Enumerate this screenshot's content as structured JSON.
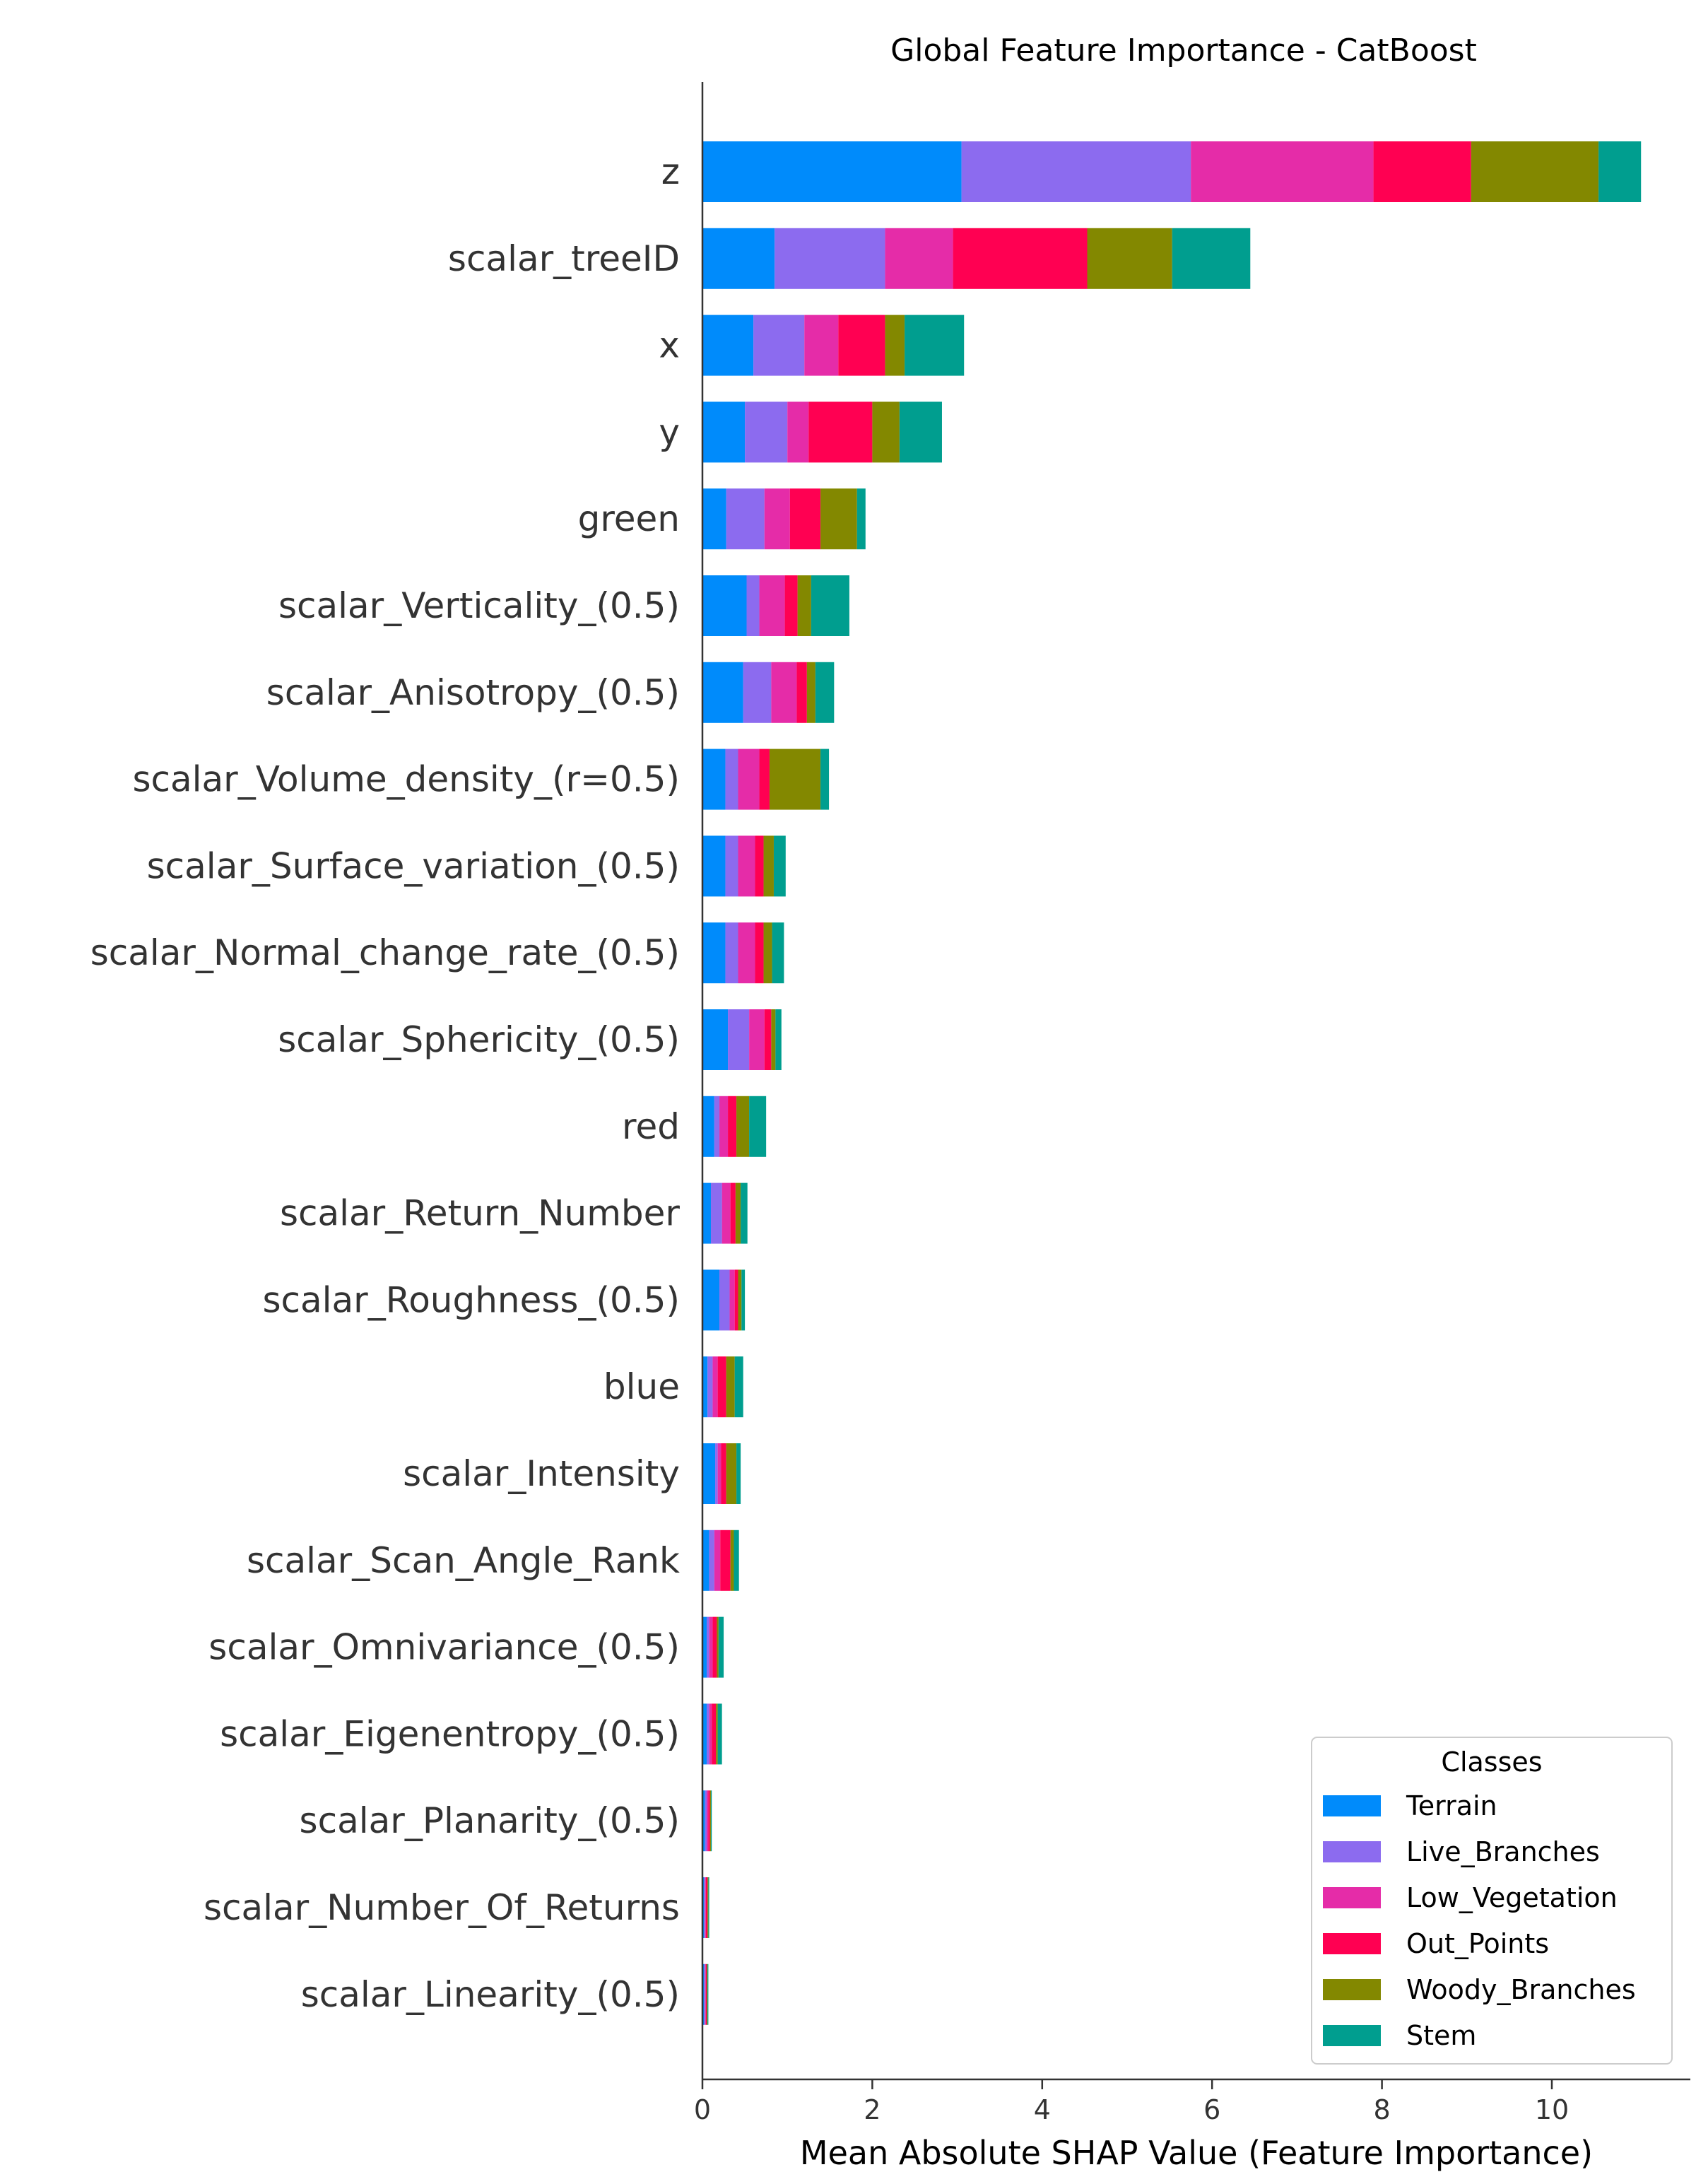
{
  "chart_data": {
    "type": "bar",
    "orientation": "horizontal",
    "stacked": true,
    "title": "Global Feature Importance - CatBoost",
    "xlabel": "Mean Absolute SHAP Value (Feature Importance)",
    "ylabel": "",
    "xlim": [
      0,
      11.6
    ],
    "xticks": [
      0,
      2,
      4,
      6,
      8,
      10
    ],
    "grid": false,
    "legend": {
      "title": "Classes",
      "position": "bottom-right"
    },
    "categories": [
      "z",
      "scalar_treeID",
      "x",
      "y",
      "green",
      "scalar_Verticality_(0.5)",
      "scalar_Anisotropy_(0.5)",
      "scalar_Volume_density_(r=0.5)",
      "scalar_Surface_variation_(0.5)",
      "scalar_Normal_change_rate_(0.5)",
      "scalar_Sphericity_(0.5)",
      "red",
      "scalar_Return_Number",
      "scalar_Roughness_(0.5)",
      "blue",
      "scalar_Intensity",
      "scalar_Scan_Angle_Rank",
      "scalar_Omnivariance_(0.5)",
      "scalar_Eigenentropy_(0.5)",
      "scalar_Planarity_(0.5)",
      "scalar_Number_Of_Returns",
      "scalar_Linearity_(0.5)"
    ],
    "series": [
      {
        "name": "Terrain",
        "color": "#008bfb",
        "values": [
          3.05,
          0.85,
          0.6,
          0.5,
          0.28,
          0.52,
          0.48,
          0.27,
          0.27,
          0.27,
          0.3,
          0.14,
          0.1,
          0.2,
          0.06,
          0.15,
          0.08,
          0.05,
          0.05,
          0.03,
          0.02,
          0.02
        ]
      },
      {
        "name": "Live_Branches",
        "color": "#8c6bef",
        "values": [
          2.7,
          1.3,
          0.6,
          0.5,
          0.45,
          0.15,
          0.33,
          0.15,
          0.15,
          0.15,
          0.25,
          0.06,
          0.13,
          0.12,
          0.06,
          0.03,
          0.06,
          0.03,
          0.03,
          0.02,
          0.01,
          0.01
        ]
      },
      {
        "name": "Low_Vegetation",
        "color": "#e52ca8",
        "values": [
          2.15,
          0.8,
          0.4,
          0.25,
          0.3,
          0.3,
          0.3,
          0.25,
          0.2,
          0.2,
          0.18,
          0.1,
          0.1,
          0.06,
          0.06,
          0.04,
          0.07,
          0.04,
          0.03,
          0.02,
          0.01,
          0.01
        ]
      },
      {
        "name": "Out_Points",
        "color": "#ff0052",
        "values": [
          1.15,
          1.58,
          0.55,
          0.75,
          0.36,
          0.15,
          0.12,
          0.12,
          0.1,
          0.1,
          0.08,
          0.1,
          0.06,
          0.04,
          0.1,
          0.06,
          0.12,
          0.05,
          0.05,
          0.02,
          0.02,
          0.01
        ]
      },
      {
        "name": "Woody_Branches",
        "color": "#838800",
        "values": [
          1.5,
          1.0,
          0.23,
          0.32,
          0.43,
          0.16,
          0.1,
          0.6,
          0.12,
          0.1,
          0.05,
          0.15,
          0.06,
          0.04,
          0.1,
          0.12,
          0.04,
          0.02,
          0.02,
          0.01,
          0.01,
          0.01
        ]
      },
      {
        "name": "Stem",
        "color": "#009e8f",
        "values": [
          0.5,
          0.92,
          0.7,
          0.5,
          0.1,
          0.45,
          0.22,
          0.1,
          0.14,
          0.14,
          0.07,
          0.2,
          0.08,
          0.04,
          0.1,
          0.05,
          0.06,
          0.06,
          0.05,
          0.01,
          0.01,
          0.01
        ]
      }
    ]
  }
}
